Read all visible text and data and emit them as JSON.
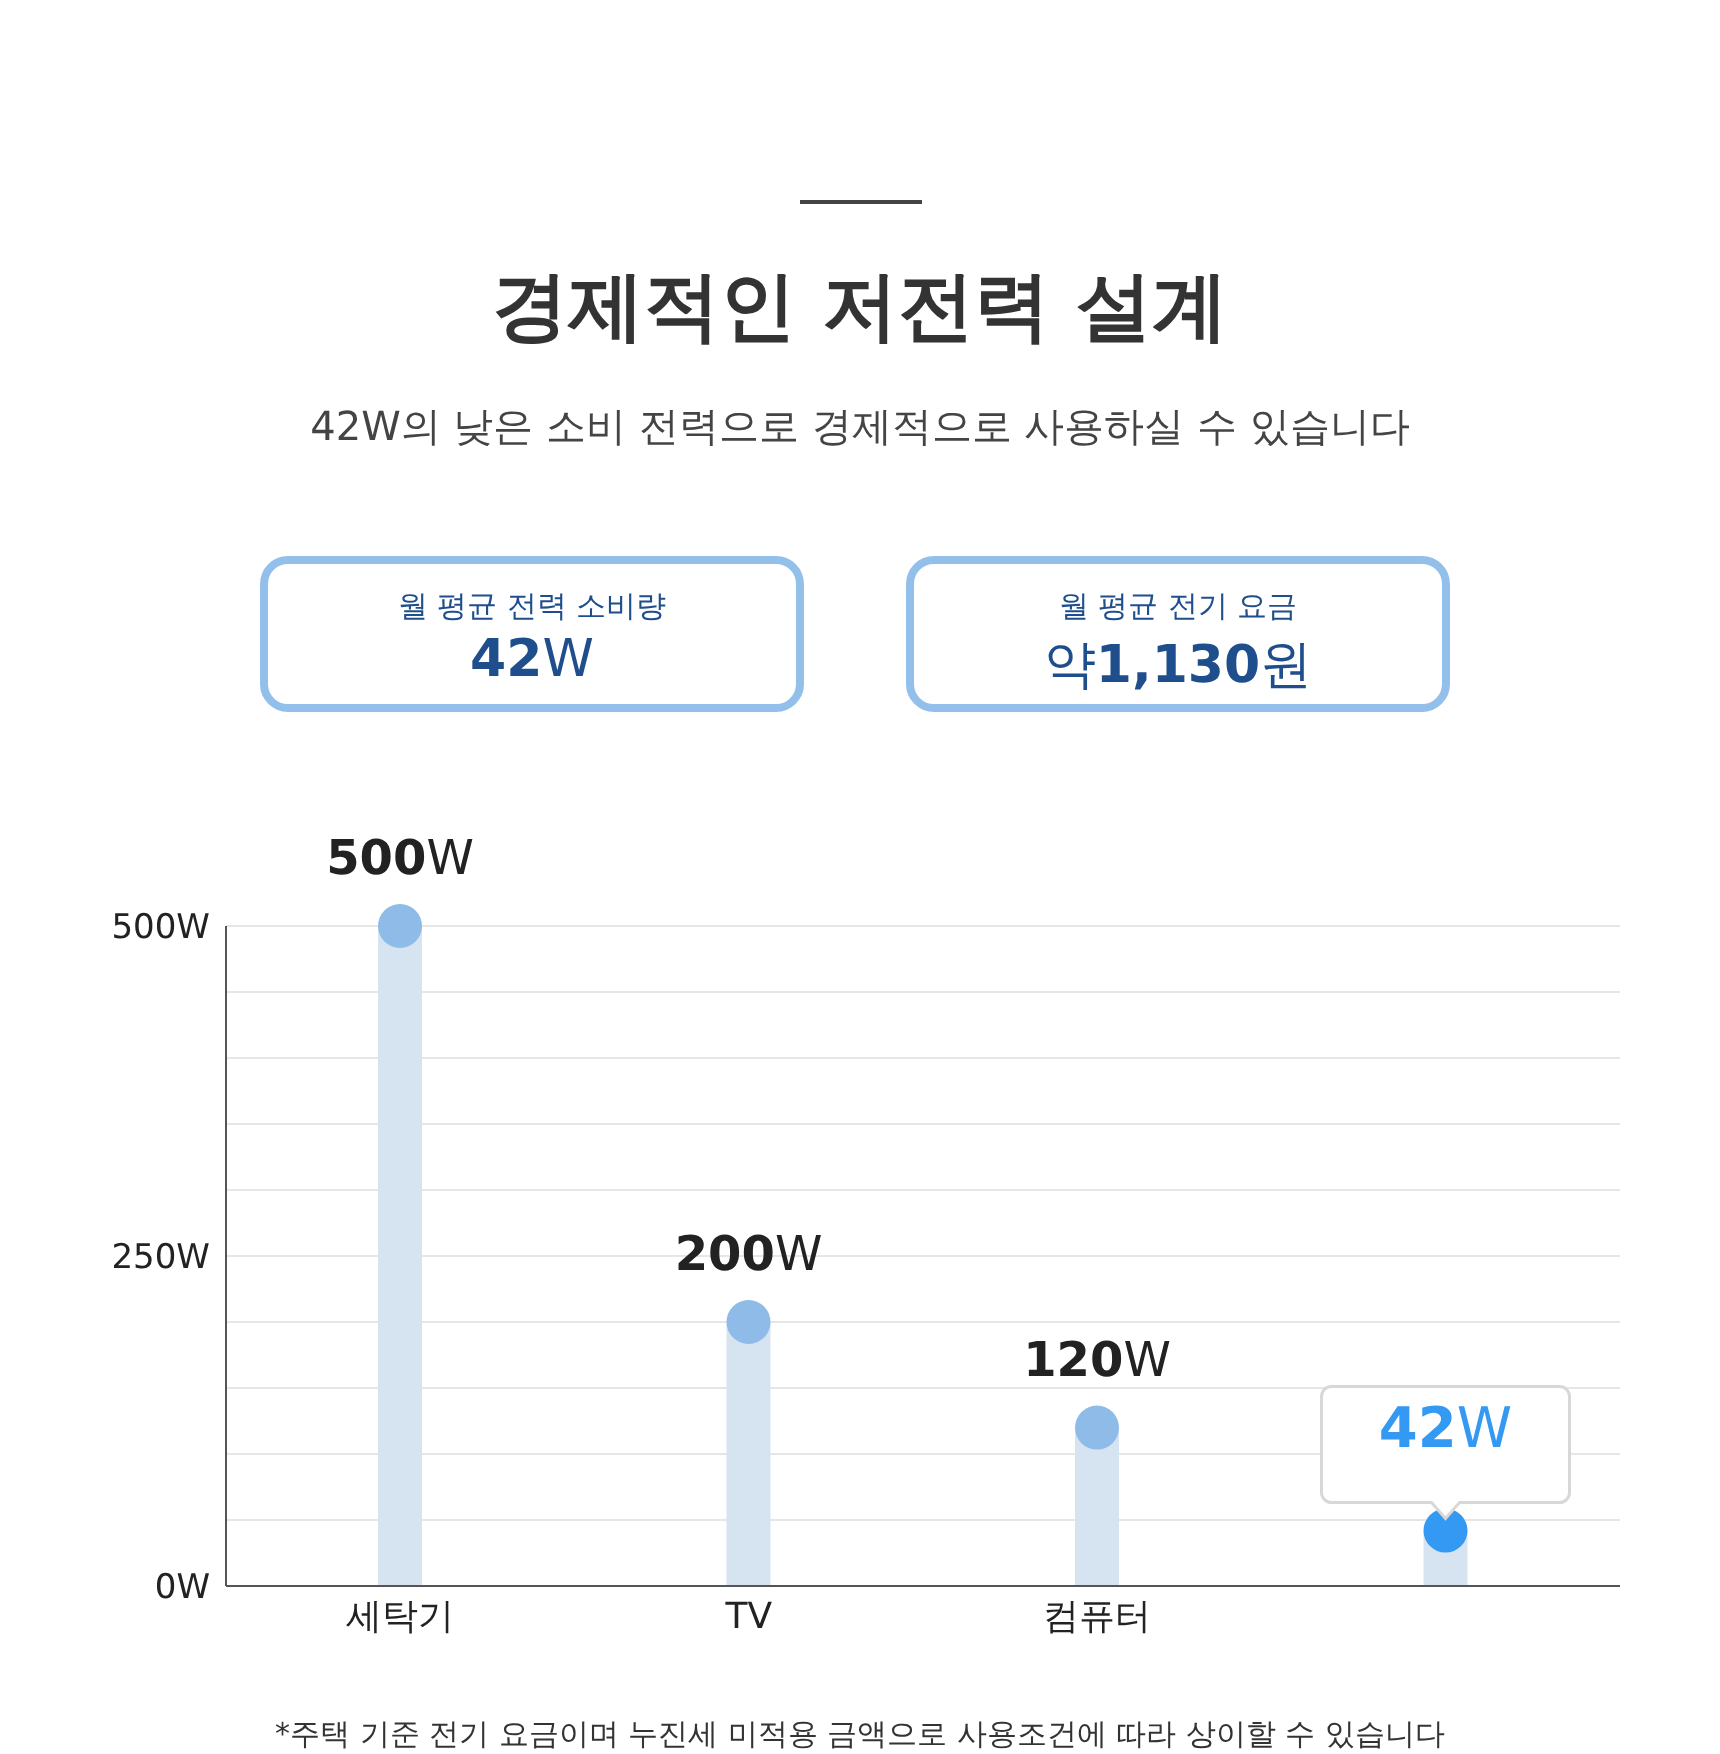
{
  "chart_data": {
    "type": "lollipop",
    "title": "경제적인 저전력 설계",
    "subtitle": "42W의 낮은 소비 전력으로 경제적으로 사용하실 수 있습니다",
    "categories": [
      "세탁기",
      "TV",
      "컴퓨터",
      null
    ],
    "values": [
      500,
      200,
      120,
      42
    ],
    "color": "#d6e3f1",
    "colors": [
      "#8fbbe8",
      "#8fbbe8",
      "#8fbbe8",
      "#3399f3"
    ],
    "value_labels": [
      "500W",
      "200W",
      "120W",
      "42W"
    ],
    "ylim": [
      0,
      500
    ],
    "yticks": [
      {
        "value": 0,
        "label": "0W"
      },
      {
        "value": 50,
        "label": null
      },
      {
        "value": 100,
        "label": null
      },
      {
        "value": 150,
        "label": null
      },
      {
        "value": 200,
        "label": null
      },
      {
        "value": 250,
        "label": "250W"
      },
      {
        "value": 300,
        "label": null
      },
      {
        "value": 350,
        "label": null
      },
      {
        "value": 400,
        "label": null
      },
      {
        "value": 450,
        "label": null
      },
      {
        "value": 500,
        "label": "500W"
      }
    ],
    "grid": "y",
    "legend": false,
    "annotations": [
      "월 평균 전력 소비량",
      "42W",
      "월 평균 전기 요금",
      "약1,130원",
      "*주택 기준 전기 요금이며 누진세 미적용 금액으로 사용조건에 따라 상이할 수 있습니다"
    ]
  }
}
